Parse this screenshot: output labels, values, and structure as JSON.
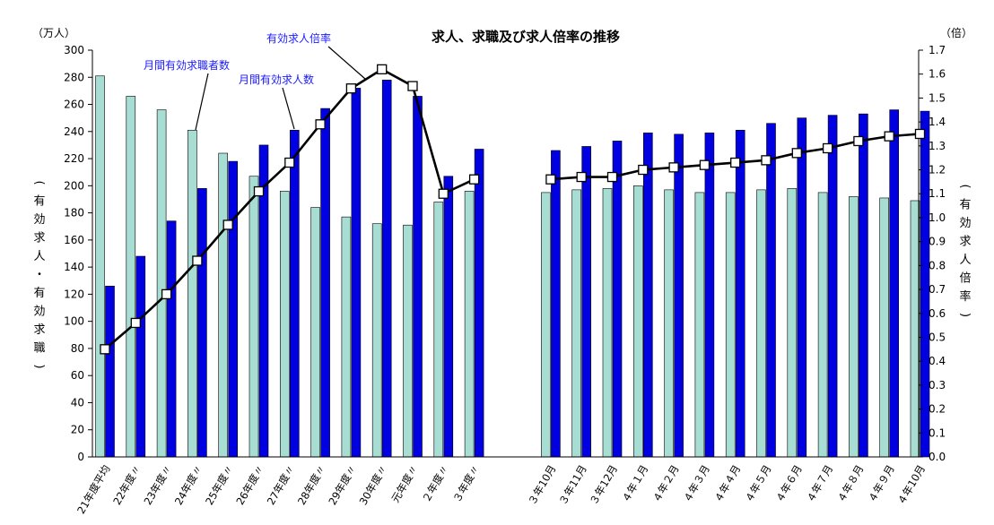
{
  "chart_data": {
    "type": "bar",
    "title": "求人、求職及び求人倍率の推移",
    "left_unit": "（万人）",
    "right_unit": "（倍）",
    "left_axis_label": "（有効求人・有効求職）",
    "right_axis_label": "（有効求人倍率）",
    "ylim_left": [
      0,
      300
    ],
    "ylim_right": [
      0.0,
      1.7
    ],
    "left_ticks": [
      "0",
      "20",
      "40",
      "60",
      "80",
      "100",
      "120",
      "140",
      "160",
      "180",
      "200",
      "220",
      "240",
      "260",
      "280",
      "300"
    ],
    "right_ticks": [
      "0.0",
      "0.1",
      "0.2",
      "0.3",
      "0.4",
      "0.5",
      "0.6",
      "0.7",
      "0.8",
      "0.9",
      "1.0",
      "1.1",
      "1.2",
      "1.3",
      "1.4",
      "1.5",
      "1.6",
      "1.7"
    ],
    "categories": [
      "21年度平均",
      "22年度〃",
      "23年度〃",
      "24年度〃",
      "25年度〃",
      "26年度〃",
      "27年度〃",
      "28年度〃",
      "29年度〃",
      "30年度〃",
      "元年度〃",
      "２年度〃",
      "３年度〃",
      "３年10月",
      "３年11月",
      "３年12月",
      "４年１月",
      "４年２月",
      "４年３月",
      "４年４月",
      "４年５月",
      "４年６月",
      "４年７月",
      "４年８月",
      "４年９月",
      "４年10月"
    ],
    "gap_after_index": 12,
    "colors": {
      "seekers": "#a8ddd4",
      "openings": "#0000e0",
      "ratio_line": "#000000",
      "marker_fill": "#ffffff"
    },
    "series": [
      {
        "name": "月間有効求職者数",
        "axis": "left",
        "values": [
          281,
          266,
          256,
          241,
          224,
          207,
          196,
          184,
          177,
          172,
          171,
          188,
          196,
          195,
          197,
          198,
          200,
          197,
          195,
          195,
          197,
          198,
          195,
          192,
          191,
          189
        ]
      },
      {
        "name": "月間有効求人数",
        "axis": "left",
        "values": [
          126,
          148,
          174,
          198,
          218,
          230,
          241,
          257,
          272,
          278,
          266,
          207,
          227,
          226,
          229,
          233,
          239,
          238,
          239,
          241,
          246,
          250,
          252,
          253,
          256,
          255
        ]
      },
      {
        "name": "有効求人倍率",
        "axis": "right",
        "values": [
          0.45,
          0.56,
          0.68,
          0.82,
          0.97,
          1.11,
          1.23,
          1.39,
          1.54,
          1.62,
          1.55,
          1.1,
          1.16,
          1.16,
          1.17,
          1.17,
          1.2,
          1.21,
          1.22,
          1.23,
          1.24,
          1.27,
          1.29,
          1.32,
          1.34,
          1.35
        ]
      }
    ]
  }
}
